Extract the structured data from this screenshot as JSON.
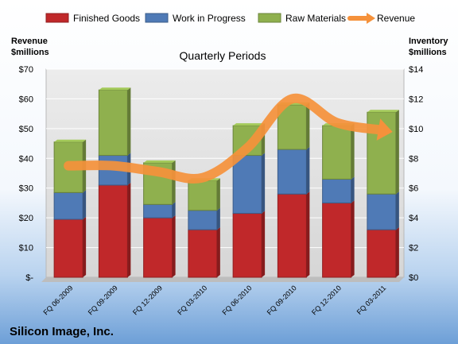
{
  "chart_data": {
    "type": "bar",
    "subtype": "stacked-bar-with-line",
    "title": "Quarterly Periods",
    "company": "Silicon Image, Inc.",
    "y_left_label": [
      "Revenue",
      "$millions"
    ],
    "y_right_label": [
      "Inventory",
      "$millions"
    ],
    "y_left_ticks": [
      "$-",
      "$10",
      "$20",
      "$30",
      "$40",
      "$50",
      "$60",
      "$70"
    ],
    "y_right_ticks": [
      "$0",
      "$2",
      "$4",
      "$6",
      "$8",
      "$10",
      "$12",
      "$14"
    ],
    "ylim_left": [
      0,
      70
    ],
    "ylim_right": [
      0,
      14
    ],
    "grid": true,
    "legend_position": "top",
    "categories": [
      "FQ 06-2009",
      "FQ 09-2009",
      "FQ 12-2009",
      "FQ 03-2010",
      "FQ 06-2010",
      "FQ 09-2010",
      "FQ 12-2010",
      "FQ 03-2011"
    ],
    "series": [
      {
        "name": "Finished Goods",
        "kind": "bar",
        "axis": "right",
        "color": "#c0282a",
        "values": [
          3.9,
          6.2,
          4.0,
          3.2,
          4.3,
          5.6,
          5.0,
          3.2
        ]
      },
      {
        "name": "Work in Progress",
        "kind": "bar",
        "axis": "right",
        "color": "#4f7ab6",
        "values": [
          1.8,
          2.0,
          0.9,
          1.3,
          3.9,
          3.0,
          1.6,
          2.4
        ]
      },
      {
        "name": "Raw Materials",
        "kind": "bar",
        "axis": "right",
        "color": "#8fb04e",
        "values": [
          3.4,
          4.4,
          2.8,
          2.0,
          2.0,
          3.0,
          3.6,
          5.5
        ]
      },
      {
        "name": "Revenue",
        "kind": "line",
        "axis": "left",
        "color": "#f5913b",
        "values": [
          37.5,
          37.5,
          35.5,
          33.5,
          43.5,
          60.0,
          52.0,
          49.5
        ]
      }
    ]
  }
}
